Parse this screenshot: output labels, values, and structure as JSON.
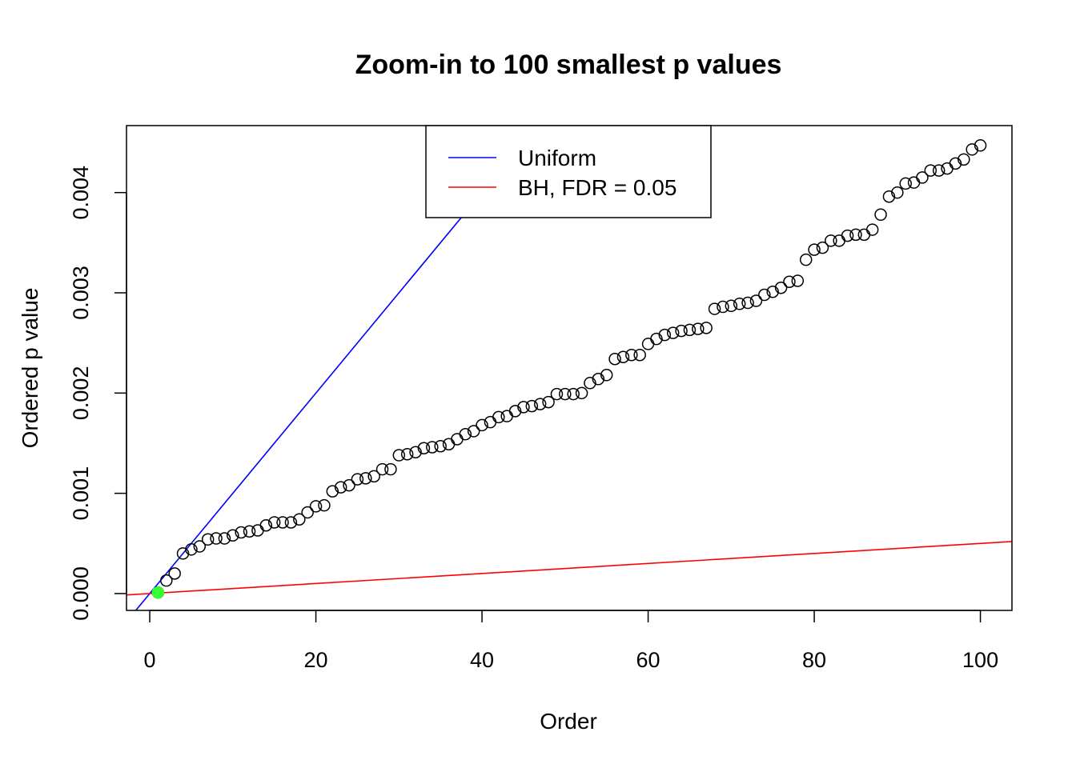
{
  "chart_data": {
    "type": "scatter",
    "title": "Zoom-in to 100 smallest p values",
    "xlabel": "Order",
    "ylabel": "Ordered p value",
    "xlim": [
      -2.8,
      103.8
    ],
    "ylim": [
      -0.000168,
      0.004668
    ],
    "x_ticks": [
      0,
      20,
      40,
      60,
      80,
      100
    ],
    "x_tick_labels": [
      "0",
      "20",
      "40",
      "60",
      "80",
      "100"
    ],
    "y_ticks": [
      0,
      0.001,
      0.002,
      0.003,
      0.004
    ],
    "y_tick_labels": [
      "0.000",
      "0.001",
      "0.002",
      "0.003",
      "0.004"
    ],
    "grid": false,
    "legend": {
      "position": "top-center",
      "entries": [
        {
          "label": "Uniform",
          "color": "#0000ff"
        },
        {
          "label": "BH, FDR = 0.05",
          "color": "#ff0000"
        }
      ]
    },
    "lines": [
      {
        "name": "Uniform",
        "color": "#0000ff",
        "intercept": 0,
        "slope": 0.0001
      },
      {
        "name": "BH, FDR = 0.05",
        "color": "#ff0000",
        "intercept": 0,
        "slope": 5e-06
      }
    ],
    "series": [
      {
        "marker": "open-circle",
        "color": "#000000",
        "x": [
          1,
          2,
          3,
          4,
          5,
          6,
          7,
          8,
          9,
          10,
          11,
          12,
          13,
          14,
          15,
          16,
          17,
          18,
          19,
          20,
          21,
          22,
          23,
          24,
          25,
          26,
          27,
          28,
          29,
          30,
          31,
          32,
          33,
          34,
          35,
          36,
          37,
          38,
          39,
          40,
          41,
          42,
          43,
          44,
          45,
          46,
          47,
          48,
          49,
          50,
          51,
          52,
          53,
          54,
          55,
          56,
          57,
          58,
          59,
          60,
          61,
          62,
          63,
          64,
          65,
          66,
          67,
          68,
          69,
          70,
          71,
          72,
          73,
          74,
          75,
          76,
          77,
          78,
          79,
          80,
          81,
          82,
          83,
          84,
          85,
          86,
          87,
          88,
          89,
          90,
          91,
          92,
          93,
          94,
          95,
          96,
          97,
          98,
          99,
          100
        ],
        "values": [
          1e-05,
          0.00013,
          0.0002,
          0.0004,
          0.00044,
          0.00047,
          0.00054,
          0.00055,
          0.00055,
          0.00058,
          0.00061,
          0.00062,
          0.00063,
          0.00068,
          0.00071,
          0.00071,
          0.00071,
          0.00074,
          0.00081,
          0.00087,
          0.00088,
          0.00102,
          0.00106,
          0.00108,
          0.00114,
          0.00115,
          0.00117,
          0.00124,
          0.00124,
          0.00138,
          0.00139,
          0.00141,
          0.00145,
          0.00146,
          0.00147,
          0.00149,
          0.00154,
          0.00159,
          0.00162,
          0.00168,
          0.00171,
          0.00176,
          0.00177,
          0.00182,
          0.00186,
          0.00187,
          0.00189,
          0.00191,
          0.00199,
          0.00199,
          0.00199,
          0.002,
          0.0021,
          0.00214,
          0.00218,
          0.00234,
          0.00236,
          0.00238,
          0.00238,
          0.00249,
          0.00254,
          0.00258,
          0.0026,
          0.00262,
          0.00263,
          0.00264,
          0.00265,
          0.00284,
          0.00286,
          0.00287,
          0.00289,
          0.0029,
          0.00292,
          0.00298,
          0.00301,
          0.00305,
          0.00311,
          0.00312,
          0.00333,
          0.00343,
          0.00345,
          0.00352,
          0.00352,
          0.00357,
          0.00358,
          0.00358,
          0.00363,
          0.00378,
          0.00396,
          0.004,
          0.00409,
          0.0041,
          0.00415,
          0.00422,
          0.00422,
          0.00424,
          0.00429,
          0.00433,
          0.00443,
          0.00447
        ]
      }
    ],
    "highlight": {
      "x": 1,
      "y": 1e-05,
      "color": "#33ff33",
      "marker": "filled-circle"
    }
  }
}
